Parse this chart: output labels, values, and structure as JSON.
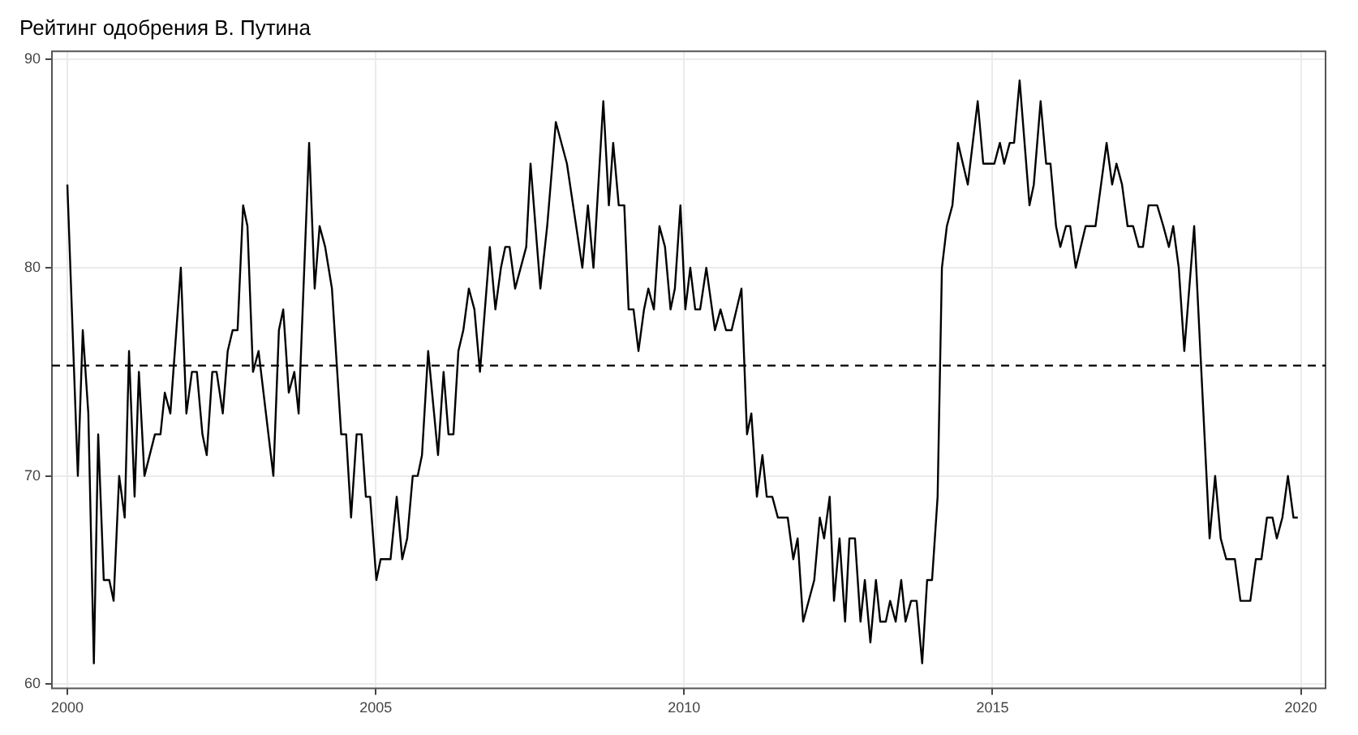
{
  "chart_data": {
    "type": "line",
    "title": "Рейтинг одобрения В. Путина",
    "x": [
      2000.0,
      2000.17,
      2000.25,
      2000.34,
      2000.43,
      2000.5,
      2000.59,
      2000.68,
      2000.75,
      2000.84,
      2000.93,
      2001.0,
      2001.09,
      2001.16,
      2001.25,
      2001.42,
      2001.51,
      2001.58,
      2001.67,
      2001.84,
      2001.93,
      2002.02,
      2002.1,
      2002.19,
      2002.26,
      2002.35,
      2002.42,
      2002.52,
      2002.6,
      2002.68,
      2002.76,
      2002.85,
      2002.92,
      2003.01,
      2003.1,
      2003.34,
      2003.43,
      2003.5,
      2003.59,
      2003.68,
      2003.75,
      2003.92,
      2004.01,
      2004.09,
      2004.18,
      2004.29,
      2004.44,
      2004.52,
      2004.6,
      2004.69,
      2004.77,
      2004.84,
      2004.91,
      2005.01,
      2005.08,
      2005.24,
      2005.34,
      2005.43,
      2005.51,
      2005.6,
      2005.68,
      2005.75,
      2005.85,
      2006.01,
      2006.1,
      2006.18,
      2006.26,
      2006.34,
      2006.42,
      2006.51,
      2006.6,
      2006.69,
      2006.85,
      2006.94,
      2007.03,
      2007.1,
      2007.17,
      2007.26,
      2007.44,
      2007.51,
      2007.67,
      2007.78,
      2007.92,
      2008.1,
      2008.35,
      2008.44,
      2008.53,
      2008.69,
      2008.78,
      2008.85,
      2008.94,
      2009.03,
      2009.1,
      2009.18,
      2009.26,
      2009.35,
      2009.42,
      2009.51,
      2009.6,
      2009.69,
      2009.78,
      2009.85,
      2009.94,
      2010.02,
      2010.1,
      2010.18,
      2010.26,
      2010.36,
      2010.5,
      2010.59,
      2010.68,
      2010.77,
      2010.93,
      2011.02,
      2011.09,
      2011.18,
      2011.27,
      2011.34,
      2011.43,
      2011.52,
      2011.68,
      2011.77,
      2011.84,
      2011.93,
      2012.11,
      2012.2,
      2012.27,
      2012.36,
      2012.43,
      2012.52,
      2012.61,
      2012.68,
      2012.77,
      2012.86,
      2012.93,
      2013.02,
      2013.11,
      2013.18,
      2013.27,
      2013.34,
      2013.43,
      2013.52,
      2013.59,
      2013.68,
      2013.77,
      2013.86,
      2013.94,
      2014.02,
      2014.11,
      2014.18,
      2014.26,
      2014.35,
      2014.44,
      2014.6,
      2014.76,
      2014.85,
      2015.03,
      2015.12,
      2015.19,
      2015.28,
      2015.35,
      2015.44,
      2015.6,
      2015.67,
      2015.78,
      2015.87,
      2015.94,
      2016.03,
      2016.1,
      2016.19,
      2016.26,
      2016.35,
      2016.51,
      2016.67,
      2016.85,
      2016.94,
      2017.01,
      2017.1,
      2017.19,
      2017.28,
      2017.37,
      2017.44,
      2017.53,
      2017.67,
      2017.77,
      2017.86,
      2017.93,
      2018.02,
      2018.11,
      2018.27,
      2018.52,
      2018.61,
      2018.7,
      2018.79,
      2018.93,
      2019.02,
      2019.18,
      2019.27,
      2019.36,
      2019.45,
      2019.54,
      2019.61,
      2019.7,
      2019.79,
      2019.88,
      2019.95
    ],
    "series": [
      {
        "color": "#000000",
        "values": [
          84,
          70,
          77,
          73,
          61,
          72,
          65,
          65,
          64,
          70,
          68,
          76,
          69,
          75,
          70,
          72,
          72,
          74,
          73,
          80,
          73,
          75,
          75,
          72,
          71,
          75,
          75,
          73,
          76,
          77,
          77,
          83,
          82,
          75,
          76,
          70,
          77,
          78,
          74,
          75,
          73,
          86,
          79,
          82,
          81,
          79,
          72,
          72,
          68,
          72,
          72,
          69,
          69,
          65,
          66,
          66,
          69,
          66,
          67,
          70,
          70,
          71,
          76,
          71,
          75,
          72,
          72,
          76,
          77,
          79,
          78,
          75,
          81,
          78,
          80,
          81,
          81,
          79,
          81,
          85,
          79,
          82,
          87,
          85,
          80,
          83,
          80,
          88,
          83,
          86,
          83,
          83,
          78,
          78,
          76,
          78,
          79,
          78,
          82,
          81,
          78,
          79,
          83,
          78,
          80,
          78,
          78,
          80,
          77,
          78,
          77,
          77,
          79,
          72,
          73,
          69,
          71,
          69,
          69,
          68,
          68,
          66,
          67,
          63,
          65,
          68,
          67,
          69,
          64,
          67,
          63,
          67,
          67,
          63,
          65,
          62,
          65,
          63,
          63,
          64,
          63,
          65,
          63,
          64,
          64,
          61,
          65,
          65,
          69,
          80,
          82,
          83,
          86,
          84,
          88,
          85,
          85,
          86,
          85,
          86,
          86,
          89,
          83,
          84,
          88,
          85,
          85,
          82,
          81,
          82,
          82,
          80,
          82,
          82,
          86,
          84,
          85,
          84,
          82,
          82,
          81,
          81,
          83,
          83,
          82,
          81,
          82,
          80,
          76,
          82,
          67,
          70,
          67,
          66,
          66,
          64,
          64,
          66,
          66,
          68,
          68,
          67,
          68,
          70,
          68,
          68
        ]
      }
    ],
    "xlim": [
      1999.75,
      2020.4
    ],
    "ylim": [
      59.8,
      90.4
    ],
    "xticks": [
      2000,
      2005,
      2010,
      2015,
      2020
    ],
    "yticks": [
      60,
      70,
      80,
      90
    ],
    "ref_lines": [
      {
        "axis": "y",
        "value": 75.3,
        "color": "#000000",
        "line_style": "dashed"
      }
    ],
    "grid": true,
    "legend": false,
    "marker": "none",
    "line_style": "solid"
  }
}
